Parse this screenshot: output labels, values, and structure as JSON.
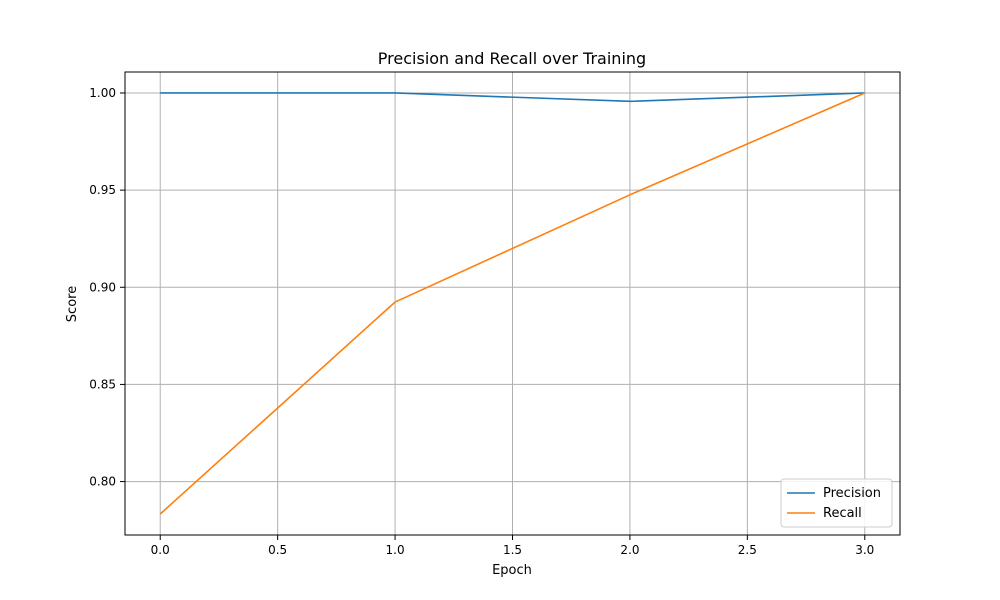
{
  "chart_data": {
    "type": "line",
    "title": "Precision and Recall over Training",
    "xlabel": "Epoch",
    "ylabel": "Score",
    "x": [
      0,
      1,
      2,
      3
    ],
    "series": [
      {
        "name": "Precision",
        "values": [
          1.0,
          1.0,
          0.9957,
          1.0
        ],
        "color": "#1f77b4"
      },
      {
        "name": "Recall",
        "values": [
          0.7833,
          0.8924,
          0.9476,
          1.0
        ],
        "color": "#ff7f0e"
      }
    ],
    "xlim": [
      -0.15,
      3.15
    ],
    "ylim": [
      0.7725,
      1.0108
    ],
    "xticks": [
      0.0,
      0.5,
      1.0,
      1.5,
      2.0,
      2.5,
      3.0
    ],
    "xtick_labels": [
      "0.0",
      "0.5",
      "1.0",
      "1.5",
      "2.0",
      "2.5",
      "3.0"
    ],
    "yticks": [
      0.8,
      0.85,
      0.9,
      0.95,
      1.0
    ],
    "ytick_labels": [
      "0.80",
      "0.85",
      "0.90",
      "0.95",
      "1.00"
    ],
    "grid": true,
    "legend_position": "lower-right"
  }
}
